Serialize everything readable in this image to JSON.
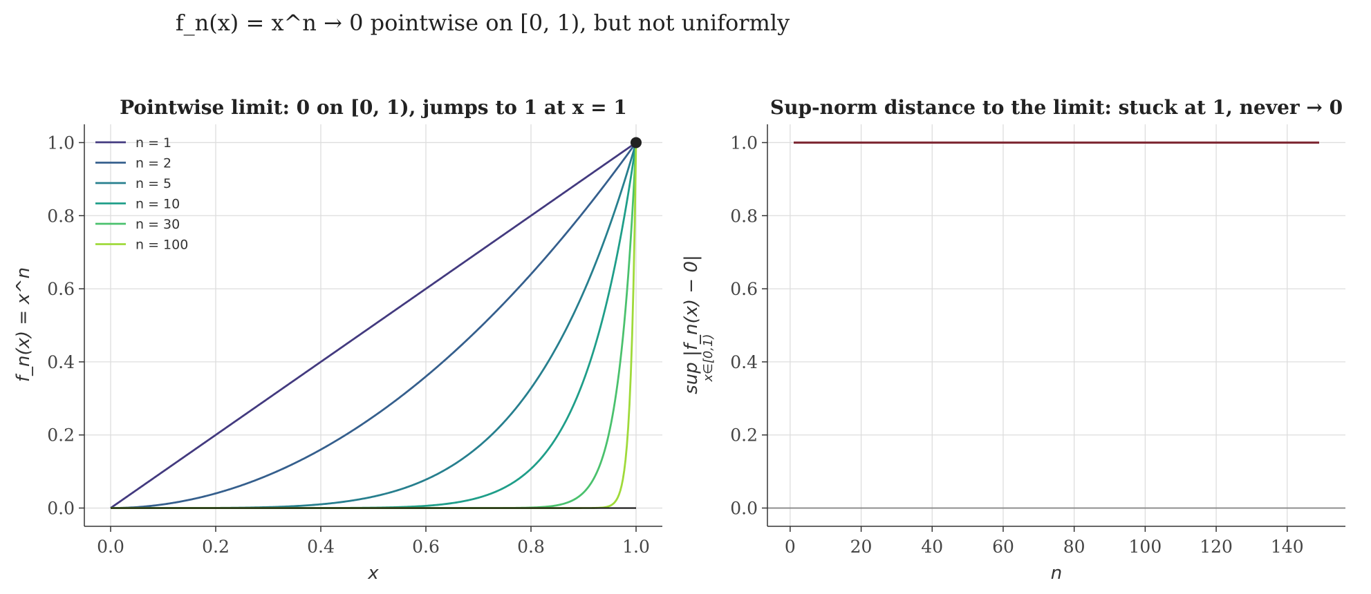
{
  "suptitle": "f_n(x) = x^n → 0 pointwise on [0, 1), but not uniformly",
  "chart_data": [
    {
      "type": "line",
      "title": "Pointwise limit: 0 on [0, 1), jumps to 1 at x = 1",
      "xlabel": "x",
      "ylabel": "f_n(x) = x^n",
      "xlim": [
        -0.05,
        1.05
      ],
      "ylim": [
        -0.05,
        1.05
      ],
      "xticks": [
        0.0,
        0.2,
        0.4,
        0.6,
        0.8,
        1.0
      ],
      "yticks": [
        0.0,
        0.2,
        0.4,
        0.6,
        0.8,
        1.0
      ],
      "grid": true,
      "legend_position": "upper-left",
      "series": [
        {
          "name": "n = 1",
          "n": 1,
          "color": "#433a7f"
        },
        {
          "name": "n = 2",
          "n": 2,
          "color": "#355f8d"
        },
        {
          "name": "n = 5",
          "n": 5,
          "color": "#277f8e"
        },
        {
          "name": "n = 10",
          "n": 10,
          "color": "#1f9e89"
        },
        {
          "name": "n = 30",
          "n": 30,
          "color": "#4ac16d"
        },
        {
          "name": "n = 100",
          "n": 100,
          "color": "#9fda3a"
        }
      ],
      "limit_line": {
        "x": [
          0,
          1
        ],
        "y": [
          0,
          0
        ],
        "color": "#111111"
      },
      "limit_point": {
        "x": 1.0,
        "y": 1.0,
        "color": "#222222"
      }
    },
    {
      "type": "line",
      "title": "Sup-norm distance to the limit: stuck at 1, never → 0",
      "xlabel": "n",
      "ylabel": "sup |f_n(x) − 0|",
      "ylabel_subscript": "x∈[0,1)",
      "xlim": [
        -6.4,
        156.4
      ],
      "ylim": [
        -0.05,
        1.05
      ],
      "xticks": [
        0,
        20,
        40,
        60,
        80,
        100,
        120,
        140
      ],
      "yticks": [
        0.0,
        0.2,
        0.4,
        0.6,
        0.8,
        1.0
      ],
      "grid": true,
      "series": [
        {
          "x": [
            1,
            149
          ],
          "y": [
            1.0,
            1.0
          ],
          "color": "#7f2a35"
        }
      ],
      "reference_line": {
        "y": 0.0,
        "color": "#888888"
      }
    }
  ]
}
